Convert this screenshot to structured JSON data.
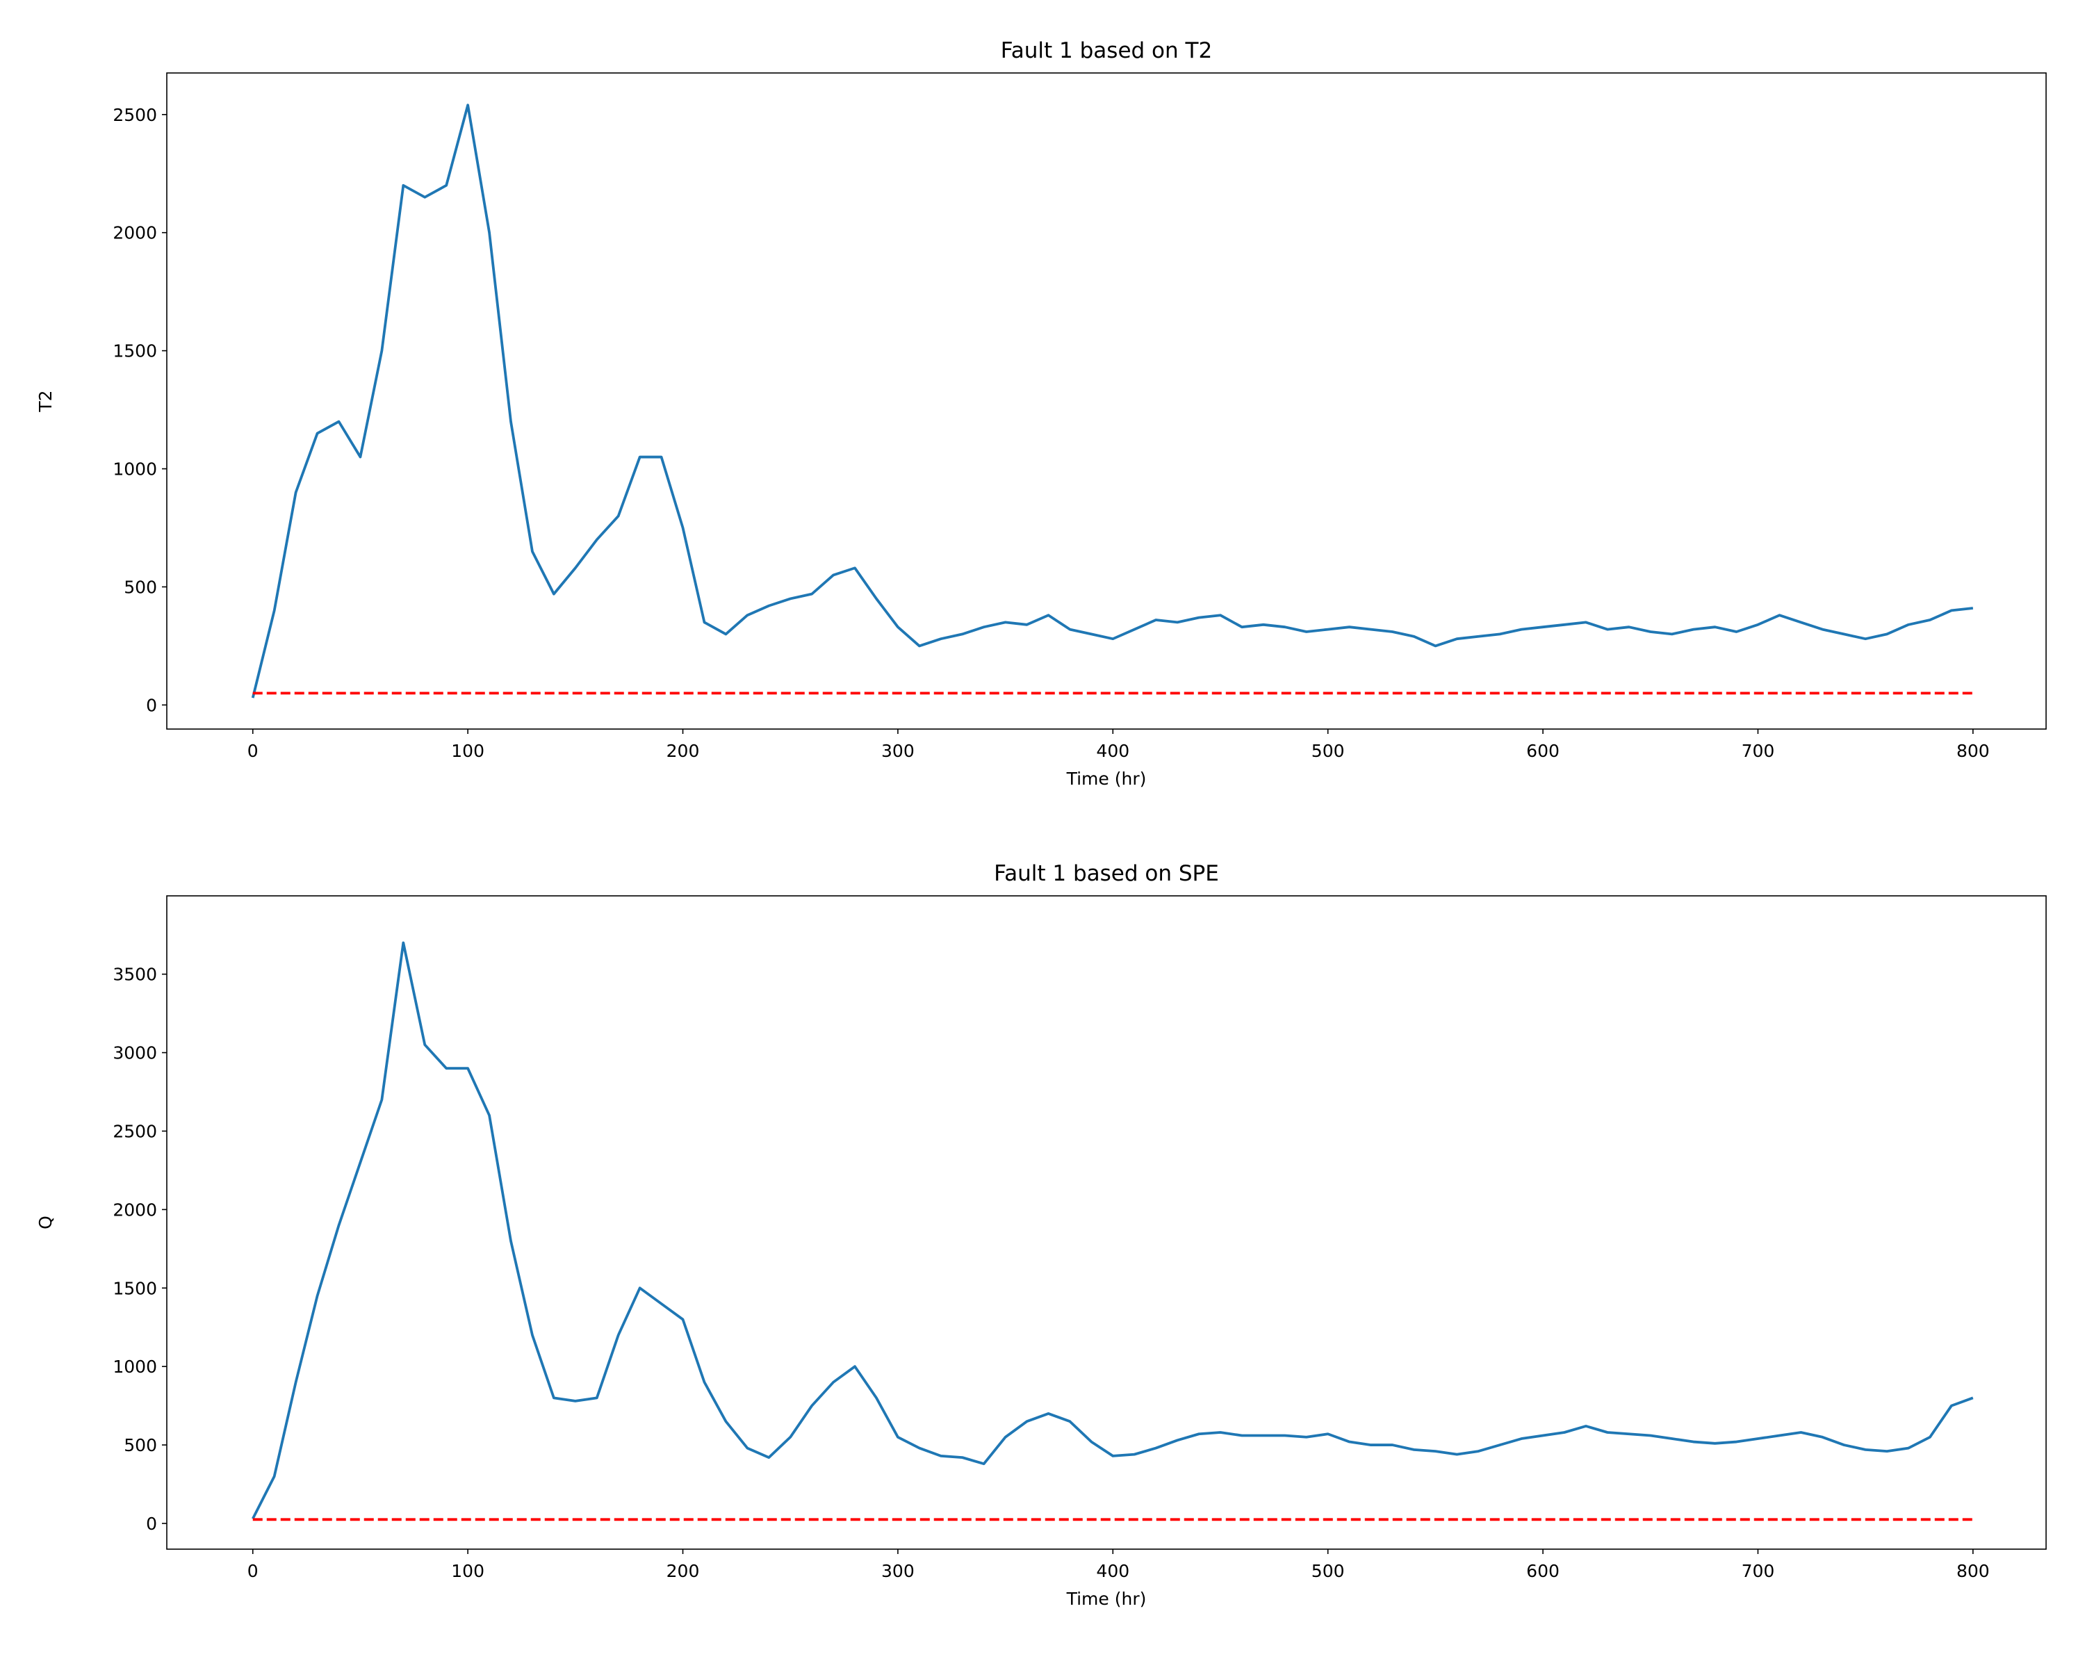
{
  "chart_data": [
    {
      "type": "line",
      "title": "Fault 1 based on T2",
      "xlabel": "Time (hr)",
      "ylabel": "T2",
      "x": [
        0,
        10,
        20,
        30,
        40,
        50,
        60,
        70,
        80,
        90,
        100,
        110,
        120,
        130,
        140,
        150,
        160,
        170,
        180,
        190,
        200,
        210,
        220,
        230,
        240,
        250,
        260,
        270,
        280,
        290,
        300,
        310,
        320,
        330,
        340,
        350,
        360,
        370,
        380,
        390,
        400,
        410,
        420,
        430,
        440,
        450,
        460,
        470,
        480,
        490,
        500,
        510,
        520,
        530,
        540,
        550,
        560,
        570,
        580,
        590,
        600,
        610,
        620,
        630,
        640,
        650,
        660,
        670,
        680,
        690,
        700,
        710,
        720,
        730,
        740,
        750,
        760,
        770,
        780,
        790,
        800
      ],
      "series": [
        {
          "color": "#1f77b4",
          "style": "solid",
          "values": [
            30,
            400,
            900,
            1150,
            1200,
            1050,
            1500,
            2200,
            2150,
            2200,
            2540,
            2000,
            1200,
            650,
            470,
            580,
            700,
            800,
            1050,
            1050,
            750,
            350,
            300,
            380,
            420,
            450,
            470,
            550,
            580,
            450,
            330,
            250,
            280,
            300,
            330,
            350,
            340,
            380,
            320,
            300,
            280,
            320,
            360,
            350,
            370,
            380,
            330,
            340,
            330,
            310,
            320,
            330,
            320,
            310,
            290,
            250,
            280,
            290,
            300,
            320,
            330,
            340,
            350,
            320,
            330,
            310,
            300,
            320,
            330,
            310,
            340,
            380,
            350,
            320,
            300,
            280,
            300,
            340,
            360,
            400,
            410
          ]
        },
        {
          "color": "#ff0000",
          "style": "dashed",
          "values": [
            50,
            50,
            50,
            50,
            50,
            50,
            50,
            50,
            50,
            50,
            50,
            50,
            50,
            50,
            50,
            50,
            50,
            50,
            50,
            50,
            50,
            50,
            50,
            50,
            50,
            50,
            50,
            50,
            50,
            50,
            50,
            50,
            50,
            50,
            50,
            50,
            50,
            50,
            50,
            50,
            50,
            50,
            50,
            50,
            50,
            50,
            50,
            50,
            50,
            50,
            50,
            50,
            50,
            50,
            50,
            50,
            50,
            50,
            50,
            50,
            50,
            50,
            50,
            50,
            50,
            50,
            50,
            50,
            50,
            50,
            50,
            50,
            50,
            50,
            50,
            50,
            50,
            50,
            50,
            50,
            50
          ]
        }
      ],
      "xlim": [
        -40,
        834
      ],
      "xticks": [
        0,
        100,
        200,
        300,
        400,
        500,
        600,
        700,
        800
      ],
      "ylim": [
        -102,
        2676
      ],
      "yticks": [
        0,
        500,
        1000,
        1500,
        2000,
        2500
      ],
      "grid": false
    },
    {
      "type": "line",
      "title": "Fault 1 based on SPE",
      "xlabel": "Time (hr)",
      "ylabel": "Q",
      "x": [
        0,
        10,
        20,
        30,
        40,
        50,
        60,
        70,
        80,
        90,
        100,
        110,
        120,
        130,
        140,
        150,
        160,
        170,
        180,
        190,
        200,
        210,
        220,
        230,
        240,
        250,
        260,
        270,
        280,
        290,
        300,
        310,
        320,
        330,
        340,
        350,
        360,
        370,
        380,
        390,
        400,
        410,
        420,
        430,
        440,
        450,
        460,
        470,
        480,
        490,
        500,
        510,
        520,
        530,
        540,
        550,
        560,
        570,
        580,
        590,
        600,
        610,
        620,
        630,
        640,
        650,
        660,
        670,
        680,
        690,
        700,
        710,
        720,
        730,
        740,
        750,
        760,
        770,
        780,
        790,
        800
      ],
      "series": [
        {
          "color": "#1f77b4",
          "style": "solid",
          "values": [
            30,
            300,
            900,
            1450,
            1900,
            2300,
            2700,
            3700,
            3050,
            2900,
            2900,
            2600,
            1800,
            1200,
            800,
            780,
            800,
            1200,
            1500,
            1400,
            1300,
            900,
            650,
            480,
            420,
            550,
            750,
            900,
            1000,
            800,
            550,
            480,
            430,
            420,
            380,
            550,
            650,
            700,
            650,
            520,
            430,
            440,
            480,
            530,
            570,
            580,
            560,
            560,
            560,
            550,
            570,
            520,
            500,
            500,
            470,
            460,
            440,
            460,
            500,
            540,
            560,
            580,
            620,
            580,
            570,
            560,
            540,
            520,
            510,
            520,
            540,
            560,
            580,
            550,
            500,
            470,
            460,
            480,
            550,
            750,
            800
          ]
        },
        {
          "color": "#ff0000",
          "style": "dashed",
          "values": [
            25,
            25,
            25,
            25,
            25,
            25,
            25,
            25,
            25,
            25,
            25,
            25,
            25,
            25,
            25,
            25,
            25,
            25,
            25,
            25,
            25,
            25,
            25,
            25,
            25,
            25,
            25,
            25,
            25,
            25,
            25,
            25,
            25,
            25,
            25,
            25,
            25,
            25,
            25,
            25,
            25,
            25,
            25,
            25,
            25,
            25,
            25,
            25,
            25,
            25,
            25,
            25,
            25,
            25,
            25,
            25,
            25,
            25,
            25,
            25,
            25,
            25,
            25,
            25,
            25,
            25,
            25,
            25,
            25,
            25,
            25,
            25,
            25,
            25,
            25,
            25,
            25,
            25,
            25,
            25,
            25
          ]
        }
      ],
      "xlim": [
        -40,
        834
      ],
      "xticks": [
        0,
        100,
        200,
        300,
        400,
        500,
        600,
        700,
        800
      ],
      "ylim": [
        -164,
        3999
      ],
      "yticks": [
        0,
        500,
        1000,
        1500,
        2000,
        2500,
        3000,
        3500
      ],
      "grid": false
    }
  ]
}
